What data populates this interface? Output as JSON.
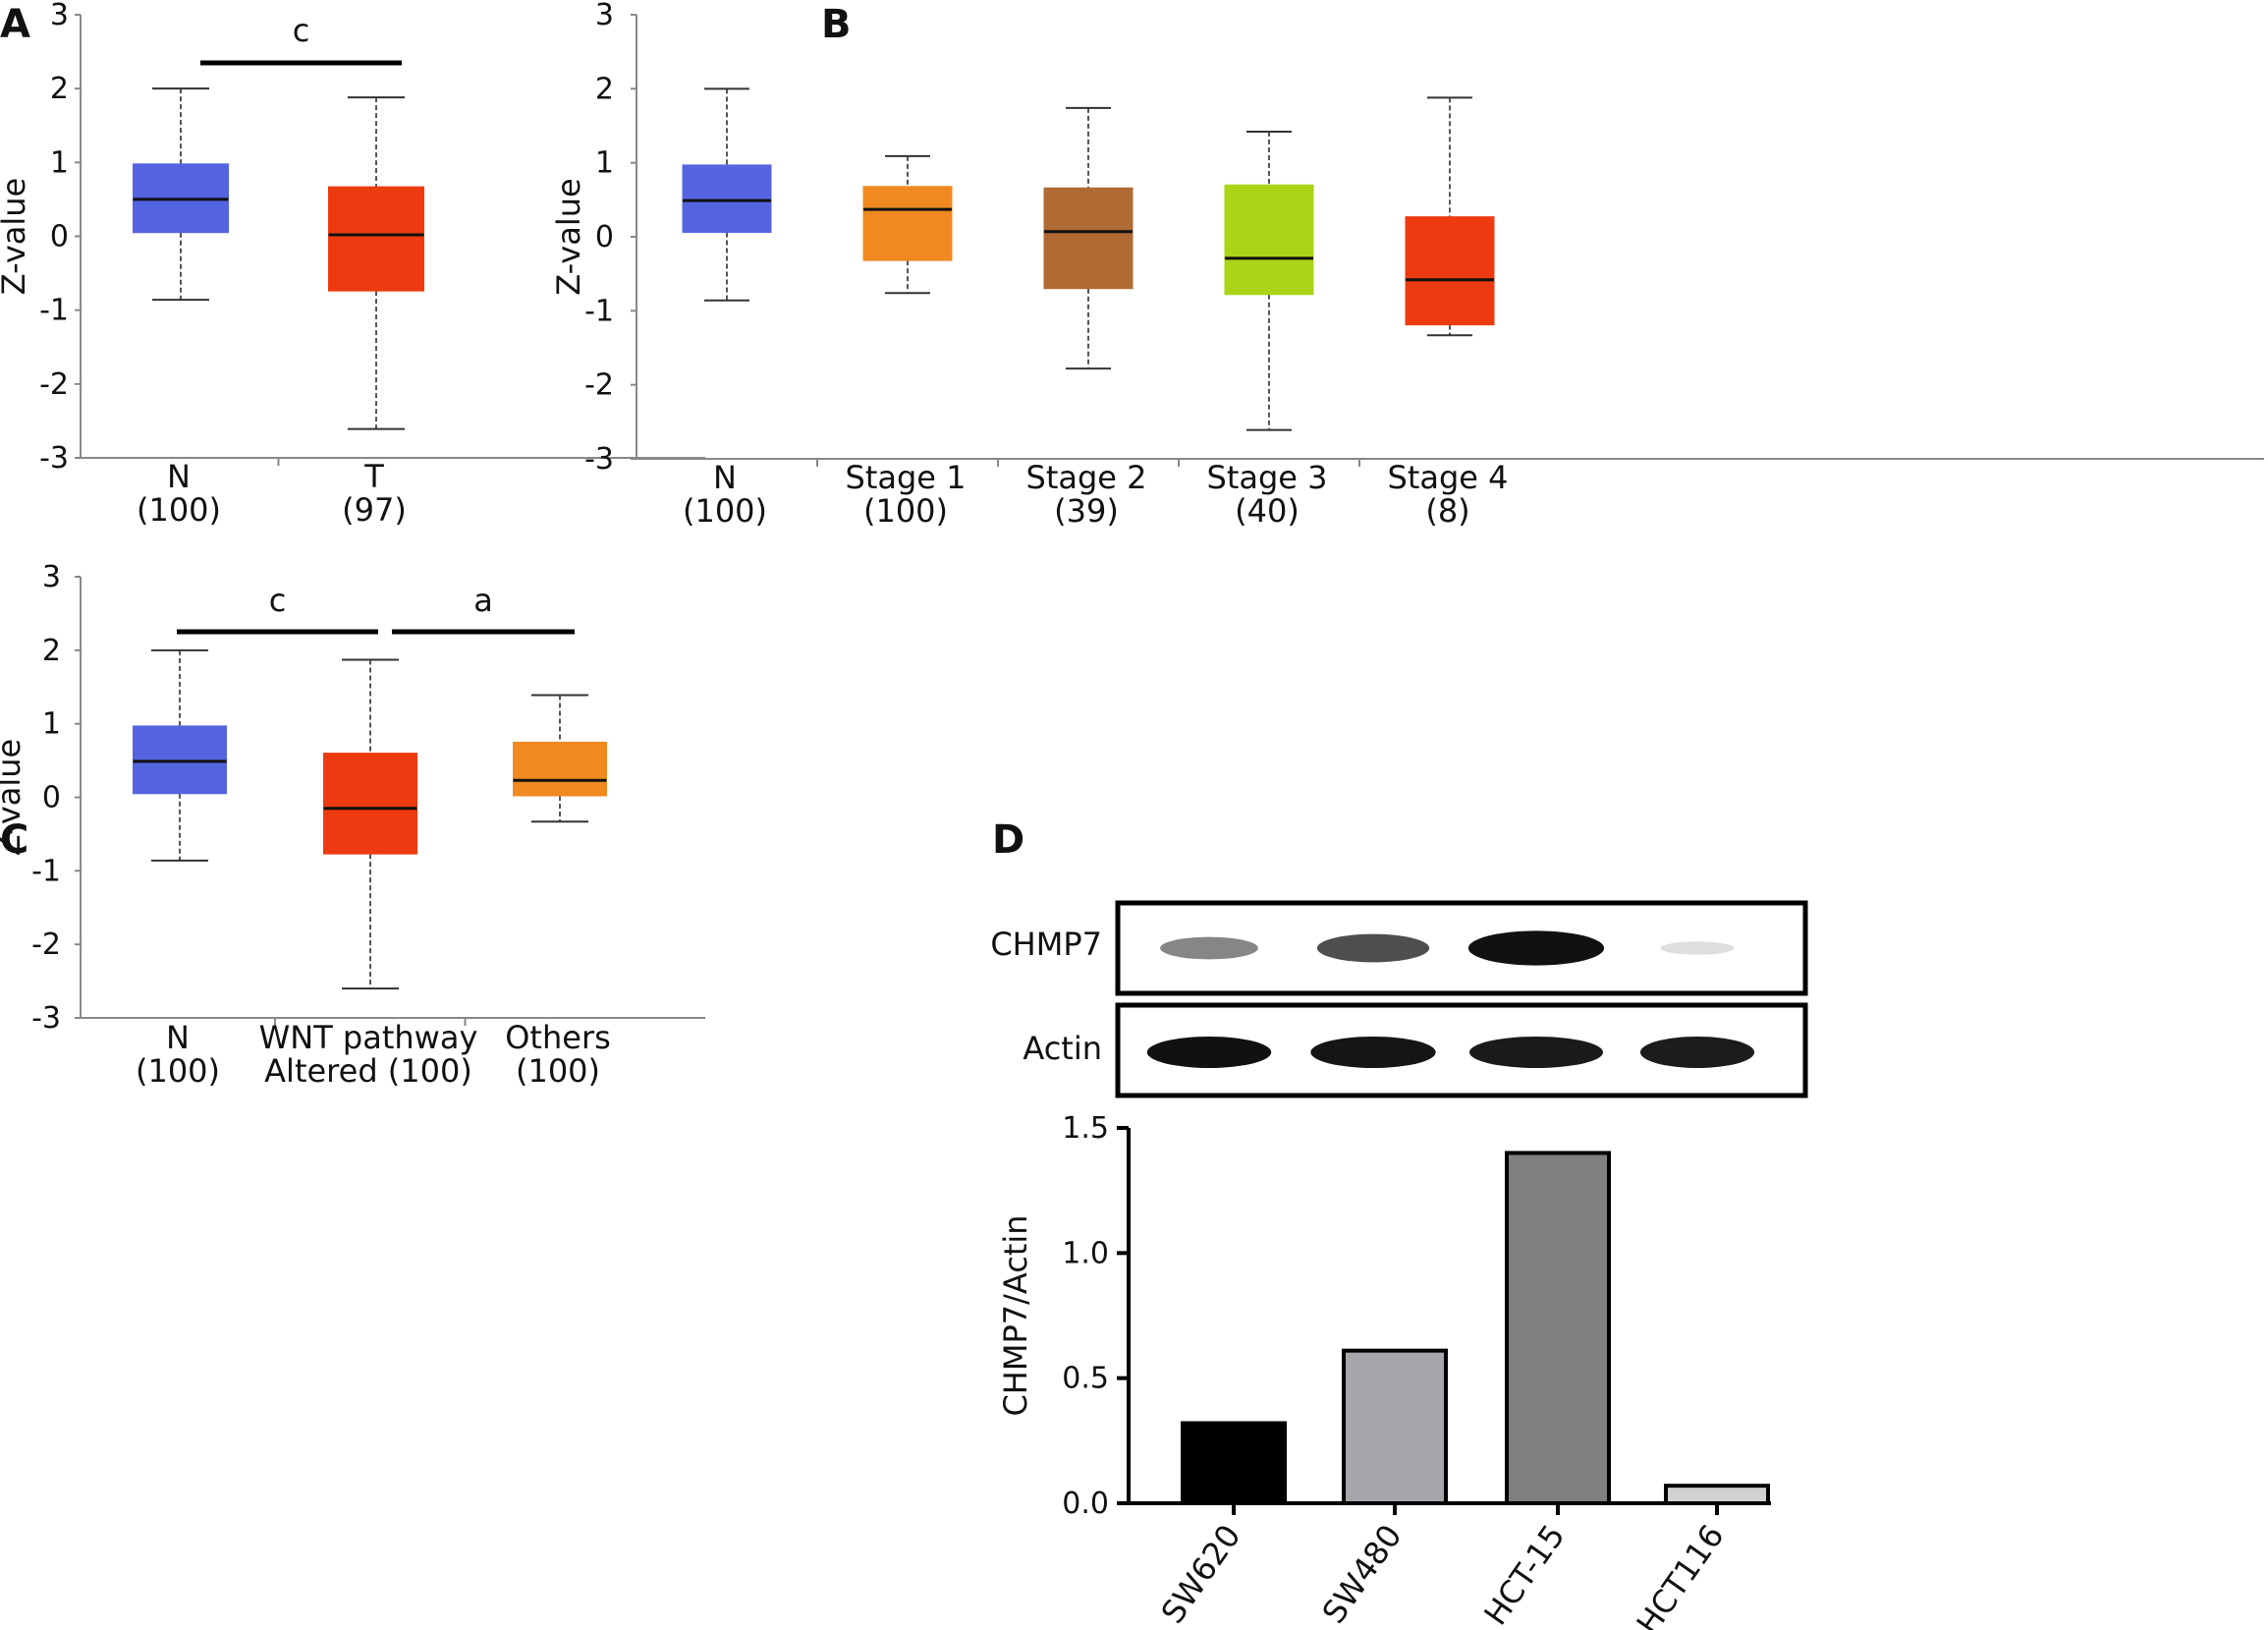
{
  "chart_data": [
    {
      "panel": "A",
      "type": "box",
      "ylabel": "Z-value",
      "ylim": [
        -3,
        3
      ],
      "yticks": [
        "3",
        "2",
        "1",
        "0",
        "-1",
        "-2",
        "-3"
      ],
      "categories": [
        {
          "name": "N",
          "count": "(100)",
          "min": -0.86,
          "q1": 0.05,
          "median": 0.5,
          "q3": 0.98,
          "max": 2.0,
          "color": "#5464e0"
        },
        {
          "name": "T",
          "count": "(97)",
          "min": -2.61,
          "q1": -0.74,
          "median": 0.02,
          "q3": 0.67,
          "max": 1.88,
          "color": "#ee3a10"
        }
      ],
      "significance": [
        {
          "from": 0,
          "to": 1,
          "label": "c"
        }
      ]
    },
    {
      "panel": "B",
      "type": "box",
      "ylabel": "Z-value",
      "ylim": [
        -3,
        3
      ],
      "yticks": [
        "3",
        "2",
        "1",
        "0",
        "-1",
        "-2",
        "-3"
      ],
      "categories": [
        {
          "name": "N",
          "count": "(100)",
          "min": -0.86,
          "q1": 0.06,
          "median": 0.49,
          "q3": 0.97,
          "max": 2.0,
          "color": "#5464e0"
        },
        {
          "name": "Stage 1",
          "count": "(100)",
          "min": -0.76,
          "q1": -0.32,
          "median": 0.37,
          "q3": 0.68,
          "max": 1.09,
          "color": "#f08a20"
        },
        {
          "name": "Stage 2",
          "count": "(39)",
          "min": -1.78,
          "q1": -0.7,
          "median": 0.07,
          "q3": 0.66,
          "max": 1.74,
          "color": "#b06a34"
        },
        {
          "name": "Stage 3",
          "count": "(40)",
          "min": -2.61,
          "q1": -0.78,
          "median": -0.29,
          "q3": 0.7,
          "max": 1.42,
          "color": "#aad418"
        },
        {
          "name": "Stage 4",
          "count": "(8)",
          "min": -1.33,
          "q1": -1.19,
          "median": -0.58,
          "q3": 0.27,
          "max": 1.88,
          "color": "#ee3a10"
        }
      ],
      "significance": []
    },
    {
      "panel": "C",
      "type": "box",
      "ylabel": "Z-value",
      "ylim": [
        -3,
        3
      ],
      "yticks": [
        "3",
        "2",
        "1",
        "0",
        "-1",
        "-2",
        "-3"
      ],
      "categories": [
        {
          "name": "N",
          "count": "(100)",
          "min": -0.86,
          "q1": 0.05,
          "median": 0.49,
          "q3": 0.97,
          "max": 2.0,
          "color": "#5464e0"
        },
        {
          "name": "WNT pathway",
          "count": "Altered (100)",
          "min": -2.6,
          "q1": -0.77,
          "median": -0.15,
          "q3": 0.6,
          "max": 1.87,
          "color": "#ee3a10"
        },
        {
          "name": "Others",
          "count": "(100)",
          "min": -0.33,
          "q1": 0.02,
          "median": 0.23,
          "q3": 0.75,
          "max": 1.39,
          "color": "#f08a20"
        }
      ],
      "significance": [
        {
          "from": 0,
          "to": 1,
          "label": "c"
        },
        {
          "from": 1,
          "to": 2,
          "label": "a"
        }
      ]
    },
    {
      "panel": "D",
      "type": "bar",
      "ylabel": "CHMP7/Actin",
      "ylim": [
        0,
        1.5
      ],
      "yticks": [
        "1.5",
        "1.0",
        "0.5",
        "0.0"
      ],
      "categories": [
        "SW620",
        "SW480",
        "HCT-15",
        "HCT116"
      ],
      "values": [
        0.32,
        0.61,
        1.4,
        0.07
      ],
      "colors": [
        "#000000",
        "#a6a6aa",
        "#7f7f7f",
        "#d2d2d2"
      ]
    }
  ],
  "panels": {
    "a": {
      "letter": "A"
    },
    "b": {
      "letter": "B"
    },
    "c": {
      "letter": "C"
    },
    "d": {
      "letter": "D"
    }
  },
  "blot": {
    "rows": [
      {
        "label": "CHMP7",
        "band_intensity": [
          0.45,
          0.7,
          0.97,
          0.06
        ]
      },
      {
        "label": "Actin",
        "band_intensity": [
          0.97,
          0.95,
          0.93,
          0.92
        ]
      }
    ]
  }
}
